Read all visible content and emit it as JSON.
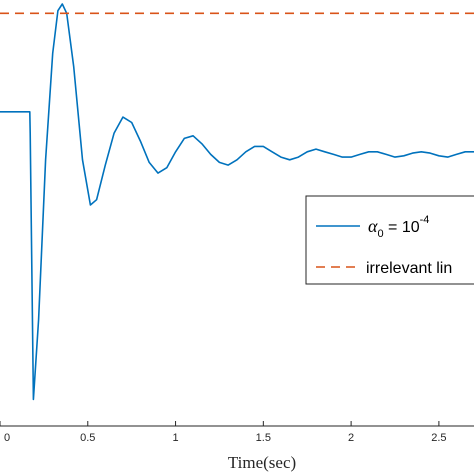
{
  "chart_data": {
    "type": "line",
    "xlabel": "Time(sec)",
    "ylabel": "",
    "title": "",
    "xlim": [
      0,
      2.7
    ],
    "ylim": [
      -0.4,
      1.2
    ],
    "x_ticks": [
      0,
      0.5,
      1,
      1.5,
      2,
      2.5
    ],
    "x_tick_labels": [
      "0",
      "0.5",
      "1",
      "1.5",
      "2",
      "2.5"
    ],
    "grid": false,
    "legend_position": "right",
    "series": [
      {
        "name": "α0 = 10^-4",
        "name_parts": {
          "symbol": "α",
          "sub": "0",
          "eq": " = 10",
          "sup": "-4"
        },
        "color": "#0072BD",
        "style": "solid",
        "x": [
          0,
          0.1,
          0.17,
          0.172,
          0.19,
          0.22,
          0.26,
          0.3,
          0.33,
          0.355,
          0.38,
          0.42,
          0.47,
          0.515,
          0.55,
          0.6,
          0.65,
          0.7,
          0.75,
          0.8,
          0.85,
          0.9,
          0.95,
          1.0,
          1.05,
          1.1,
          1.15,
          1.2,
          1.25,
          1.3,
          1.35,
          1.4,
          1.45,
          1.5,
          1.55,
          1.6,
          1.65,
          1.7,
          1.75,
          1.8,
          1.85,
          1.9,
          1.95,
          2.0,
          2.05,
          2.1,
          2.15,
          2.2,
          2.25,
          2.3,
          2.35,
          2.4,
          2.45,
          2.5,
          2.55,
          2.6,
          2.65,
          2.7
        ],
        "y": [
          0.78,
          0.78,
          0.78,
          0.7,
          -0.3,
          0.0,
          0.6,
          1.0,
          1.16,
          1.185,
          1.15,
          0.95,
          0.6,
          0.43,
          0.45,
          0.58,
          0.7,
          0.76,
          0.74,
          0.67,
          0.59,
          0.55,
          0.57,
          0.63,
          0.68,
          0.69,
          0.66,
          0.62,
          0.59,
          0.58,
          0.6,
          0.63,
          0.65,
          0.65,
          0.63,
          0.61,
          0.6,
          0.61,
          0.63,
          0.64,
          0.63,
          0.62,
          0.61,
          0.61,
          0.62,
          0.63,
          0.63,
          0.62,
          0.61,
          0.615,
          0.625,
          0.63,
          0.625,
          0.615,
          0.61,
          0.62,
          0.63,
          0.63
        ]
      },
      {
        "name": "irrelevant lin",
        "color": "#D95319",
        "style": "dashed",
        "x": [
          0,
          2.7
        ],
        "y": [
          1.15,
          1.15
        ]
      }
    ]
  }
}
